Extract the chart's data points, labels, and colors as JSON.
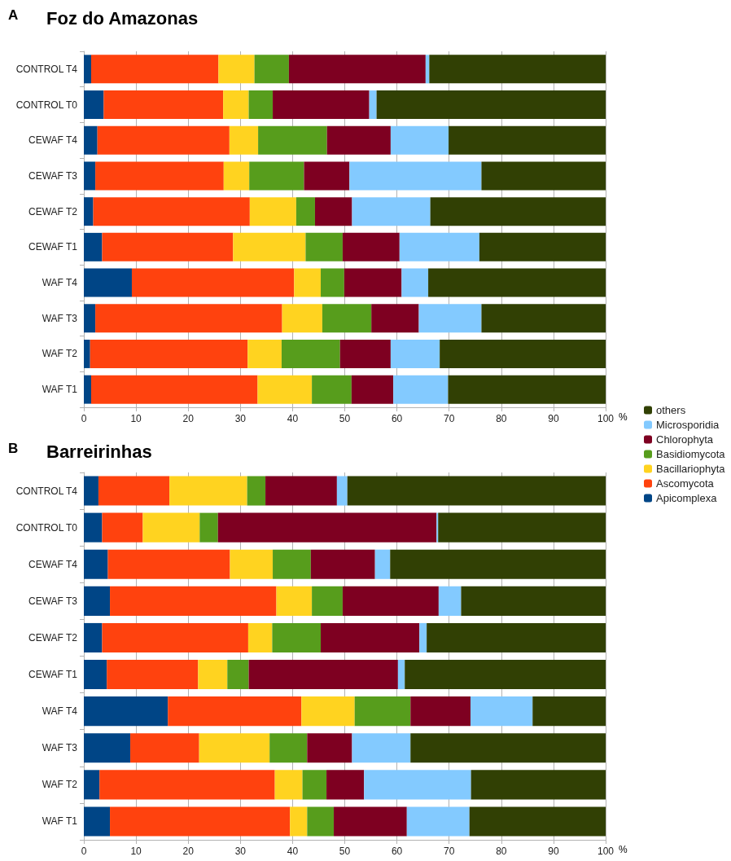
{
  "chart_data": [
    {
      "type": "bar",
      "orientation": "horizontal",
      "stacked": true,
      "title": "Foz do Amazonas",
      "annotations": [
        "A"
      ],
      "xlabel": "%",
      "categories": [
        "CONTROL T4",
        "CONTROL T0",
        "CEWAF T4",
        "CEWAF T3",
        "CEWAF T2",
        "CEWAF T1",
        "WAF T4",
        "WAF T3",
        "WAF T2",
        "WAF T1"
      ],
      "series": [
        {
          "name": "Apicomplexa",
          "color": "#004586",
          "values": [
            1.4,
            3.8,
            2.6,
            2.2,
            1.8,
            3.5,
            9.2,
            2.2,
            1.2,
            1.4
          ]
        },
        {
          "name": "Ascomycota",
          "color": "#ff420e",
          "values": [
            24.4,
            22.9,
            25.3,
            24.6,
            30.0,
            25.1,
            31.1,
            35.8,
            30.2,
            31.9
          ]
        },
        {
          "name": "Bacillariophyta",
          "color": "#ffd320",
          "values": [
            6.9,
            4.9,
            5.5,
            4.9,
            8.9,
            13.9,
            5.1,
            7.7,
            6.5,
            10.4
          ]
        },
        {
          "name": "Basidiomycota",
          "color": "#579d1c",
          "values": [
            6.6,
            4.6,
            13.2,
            10.5,
            3.6,
            7.1,
            4.5,
            9.4,
            11.2,
            7.6
          ]
        },
        {
          "name": "Chlorophyta",
          "color": "#7e0021",
          "values": [
            26.2,
            18.5,
            12.2,
            8.7,
            7.1,
            10.9,
            11.0,
            9.1,
            9.7,
            8.0
          ]
        },
        {
          "name": "Microsporidia",
          "color": "#83caff",
          "values": [
            0.7,
            1.4,
            11.1,
            25.3,
            15.0,
            15.3,
            5.1,
            12.0,
            9.4,
            10.5
          ]
        },
        {
          "name": "others",
          "color": "#314004",
          "values": [
            33.8,
            43.9,
            30.1,
            23.8,
            33.6,
            24.2,
            34.0,
            23.8,
            31.8,
            30.2
          ]
        }
      ],
      "xlim": [
        0,
        100
      ],
      "xticks": [
        0,
        10,
        20,
        30,
        40,
        50,
        60,
        70,
        80,
        90,
        100
      ],
      "grid": "x",
      "legend": "right"
    },
    {
      "type": "bar",
      "orientation": "horizontal",
      "stacked": true,
      "title": "Barreirinhas",
      "annotations": [
        "B"
      ],
      "xlabel": "%",
      "categories": [
        "CONTROL T4",
        "CONTROL T0",
        "CEWAF T4",
        "CEWAF T3",
        "CEWAF T2",
        "CEWAF T1",
        "WAF T4",
        "WAF T3",
        "WAF T2",
        "WAF T1"
      ],
      "series": [
        {
          "color": "#004586",
          "values": [
            2.8,
            3.5,
            4.6,
            5.0,
            3.5,
            4.4,
            16.1,
            8.9,
            3.0,
            5.0
          ]
        },
        {
          "color": "#ff420e",
          "values": [
            13.6,
            7.8,
            23.4,
            31.9,
            28.0,
            17.5,
            25.6,
            13.2,
            33.6,
            34.5
          ]
        },
        {
          "color": "#ffd320",
          "values": [
            14.9,
            10.9,
            8.2,
            6.8,
            4.6,
            5.6,
            10.2,
            13.5,
            5.3,
            3.3
          ]
        },
        {
          "color": "#579d1c",
          "values": [
            3.5,
            3.5,
            7.3,
            5.9,
            9.3,
            4.1,
            10.7,
            7.2,
            4.6,
            5.1
          ]
        },
        {
          "color": "#7e0021",
          "values": [
            13.7,
            41.9,
            12.3,
            18.4,
            18.9,
            28.6,
            11.5,
            8.6,
            7.2,
            14.0
          ]
        },
        {
          "color": "#83caff",
          "values": [
            2.0,
            0.3,
            2.9,
            4.3,
            1.4,
            1.3,
            11.9,
            11.2,
            20.5,
            12.0
          ]
        },
        {
          "color": "#314004",
          "values": [
            49.5,
            32.1,
            41.3,
            27.7,
            34.3,
            38.5,
            14.0,
            37.4,
            25.8,
            26.1
          ]
        }
      ],
      "xlim": [
        0,
        100
      ],
      "xticks": [
        0,
        10,
        20,
        30,
        40,
        50,
        60,
        70,
        80,
        90,
        100
      ],
      "grid": "x"
    }
  ]
}
